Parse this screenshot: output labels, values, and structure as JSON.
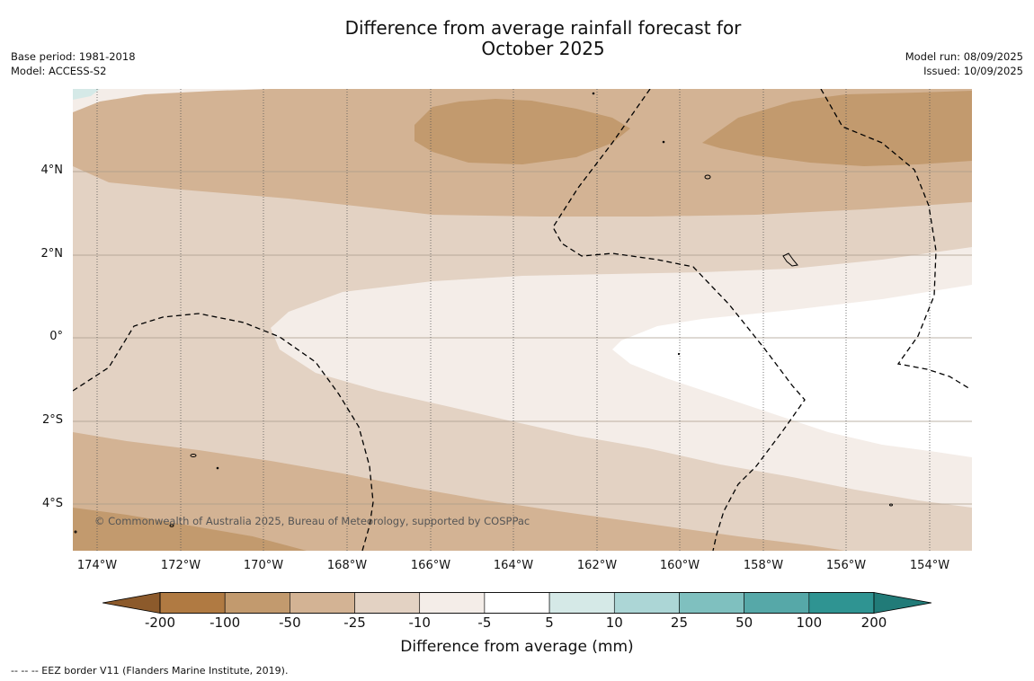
{
  "title": {
    "line1": "Difference from average rainfall forecast for",
    "line2": "October 2025"
  },
  "meta_left": {
    "base_period": "Base period: 1981-2018",
    "model": "Model: ACCESS-S2"
  },
  "meta_right": {
    "model_run": "Model run: 08/09/2025",
    "issued": "Issued: 10/09/2025"
  },
  "copyright": "© Commonwealth of Australia 2025, Bureau of Meteorology, supported by COSPPac",
  "latitude_labels": [
    "4°N",
    "2°N",
    "0°",
    "2°S",
    "4°S"
  ],
  "longitude_labels": [
    "174°W",
    "172°W",
    "170°W",
    "168°W",
    "166°W",
    "164°W",
    "162°W",
    "160°W",
    "158°W",
    "156°W",
    "154°W"
  ],
  "colorbar": {
    "label": "Difference from average (mm)",
    "ticks": [
      "-200",
      "-100",
      "-50",
      "-25",
      "-10",
      "-5",
      "5",
      "10",
      "25",
      "50",
      "100",
      "200"
    ],
    "colors": [
      "#8c5a2b",
      "#b07a42",
      "#c29a6e",
      "#d3b394",
      "#e3d2c3",
      "#f4ede8",
      "#ffffff",
      "#d5e9e7",
      "#acd6d6",
      "#7fc0bf",
      "#56a8a8",
      "#2f9492",
      "#217b78"
    ]
  },
  "footnote": "--  --  -- EEZ border V11 (Flanders Marine Institute, 2019)."
}
